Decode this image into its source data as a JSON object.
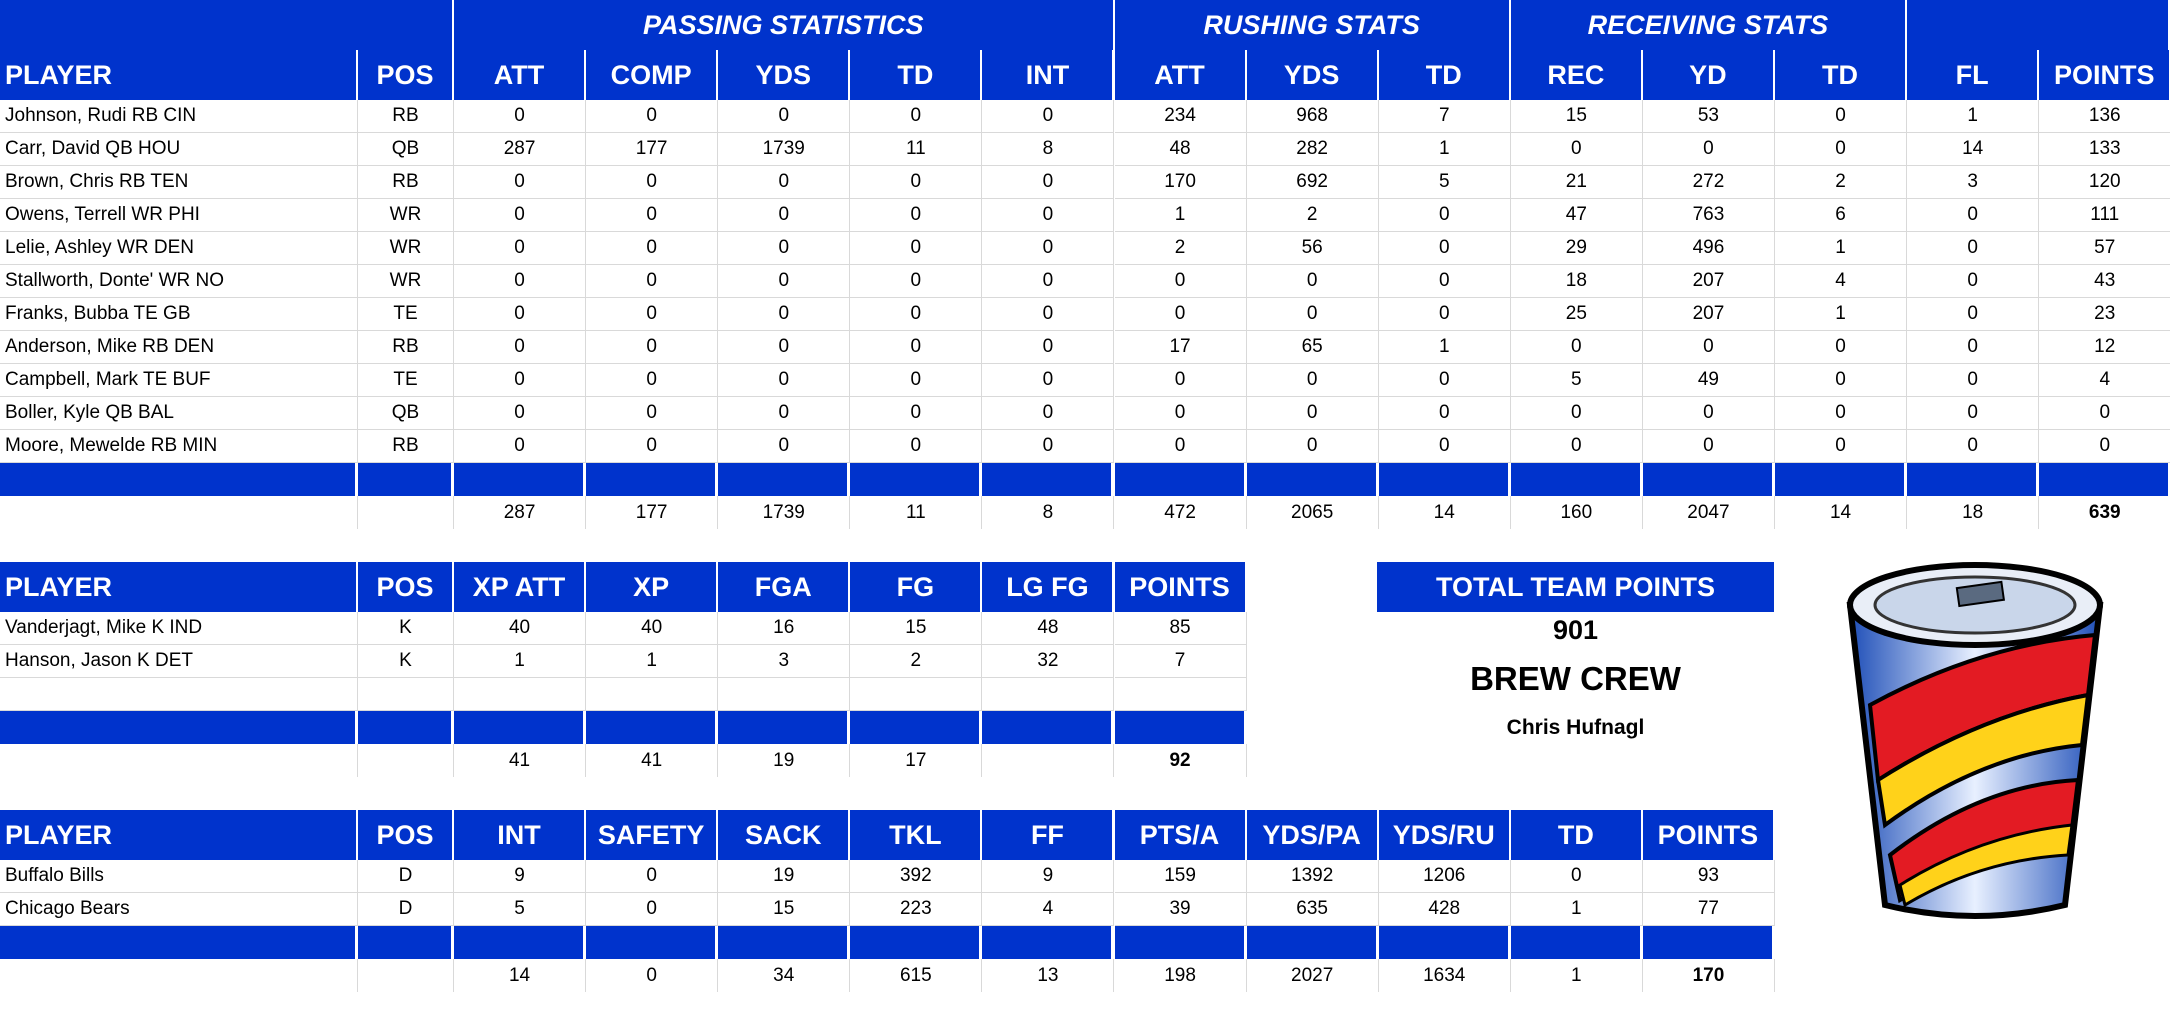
{
  "offense": {
    "groups": [
      "PASSING STATISTICS",
      "RUSHING STATS",
      "RECEIVING STATS"
    ],
    "headers": [
      "PLAYER",
      "POS",
      "ATT",
      "COMP",
      "YDS",
      "TD",
      "INT",
      "ATT",
      "YDS",
      "TD",
      "REC",
      "YD",
      "TD",
      "FL",
      "POINTS"
    ],
    "rows": [
      [
        "Johnson, Rudi RB CIN",
        "RB",
        "0",
        "0",
        "0",
        "0",
        "0",
        "234",
        "968",
        "7",
        "15",
        "53",
        "0",
        "1",
        "136"
      ],
      [
        "Carr, David QB HOU",
        "QB",
        "287",
        "177",
        "1739",
        "11",
        "8",
        "48",
        "282",
        "1",
        "0",
        "0",
        "0",
        "14",
        "133"
      ],
      [
        "Brown, Chris RB TEN",
        "RB",
        "0",
        "0",
        "0",
        "0",
        "0",
        "170",
        "692",
        "5",
        "21",
        "272",
        "2",
        "3",
        "120"
      ],
      [
        "Owens, Terrell WR PHI",
        "WR",
        "0",
        "0",
        "0",
        "0",
        "0",
        "1",
        "2",
        "0",
        "47",
        "763",
        "6",
        "0",
        "111"
      ],
      [
        "Lelie, Ashley WR DEN",
        "WR",
        "0",
        "0",
        "0",
        "0",
        "0",
        "2",
        "56",
        "0",
        "29",
        "496",
        "1",
        "0",
        "57"
      ],
      [
        "Stallworth, Donte' WR NO",
        "WR",
        "0",
        "0",
        "0",
        "0",
        "0",
        "0",
        "0",
        "0",
        "18",
        "207",
        "4",
        "0",
        "43"
      ],
      [
        "Franks, Bubba TE GB",
        "TE",
        "0",
        "0",
        "0",
        "0",
        "0",
        "0",
        "0",
        "0",
        "25",
        "207",
        "1",
        "0",
        "23"
      ],
      [
        "Anderson, Mike RB DEN",
        "RB",
        "0",
        "0",
        "0",
        "0",
        "0",
        "17",
        "65",
        "1",
        "0",
        "0",
        "0",
        "0",
        "12"
      ],
      [
        "Campbell, Mark TE BUF",
        "TE",
        "0",
        "0",
        "0",
        "0",
        "0",
        "0",
        "0",
        "0",
        "5",
        "49",
        "0",
        "0",
        "4"
      ],
      [
        "Boller, Kyle QB BAL",
        "QB",
        "0",
        "0",
        "0",
        "0",
        "0",
        "0",
        "0",
        "0",
        "0",
        "0",
        "0",
        "0",
        "0"
      ],
      [
        "Moore, Mewelde RB MIN",
        "RB",
        "0",
        "0",
        "0",
        "0",
        "0",
        "0",
        "0",
        "0",
        "0",
        "0",
        "0",
        "0",
        "0"
      ]
    ],
    "totals": [
      "",
      "",
      "287",
      "177",
      "1739",
      "11",
      "8",
      "472",
      "2065",
      "14",
      "160",
      "2047",
      "14",
      "18",
      "639"
    ]
  },
  "kickers": {
    "headers": [
      "PLAYER",
      "POS",
      "XP ATT",
      "XP",
      "FGA",
      "FG",
      "LG FG",
      "POINTS"
    ],
    "rows": [
      [
        "Vanderjagt, Mike K IND",
        "K",
        "40",
        "40",
        "16",
        "15",
        "48",
        "85"
      ],
      [
        "Hanson, Jason K DET",
        "K",
        "1",
        "1",
        "3",
        "2",
        "32",
        "7"
      ]
    ],
    "totals": [
      "",
      "",
      "41",
      "41",
      "19",
      "17",
      "",
      "92"
    ]
  },
  "defense": {
    "headers": [
      "PLAYER",
      "POS",
      "INT",
      "SAFETY",
      "SACK",
      "TKL",
      "FF",
      "PTS/A",
      "YDS/PA",
      "YDS/RU",
      "TD",
      "POINTS"
    ],
    "rows": [
      [
        "Buffalo Bills",
        "D",
        "9",
        "0",
        "19",
        "392",
        "9",
        "159",
        "1392",
        "1206",
        "0",
        "93"
      ],
      [
        "Chicago Bears",
        "D",
        "5",
        "0",
        "15",
        "223",
        "4",
        "39",
        "635",
        "428",
        "1",
        "77"
      ]
    ],
    "totals": [
      "",
      "",
      "14",
      "0",
      "34",
      "615",
      "13",
      "198",
      "2027",
      "1634",
      "1",
      "170"
    ]
  },
  "summary": {
    "total_label": "TOTAL TEAM POINTS",
    "total_value": "901",
    "team_name": "BREW CREW",
    "owner": "Chris Hufnagl"
  },
  "colors": {
    "header_blue": "#0033cc"
  },
  "logo_icon": "soda-cup-icon"
}
